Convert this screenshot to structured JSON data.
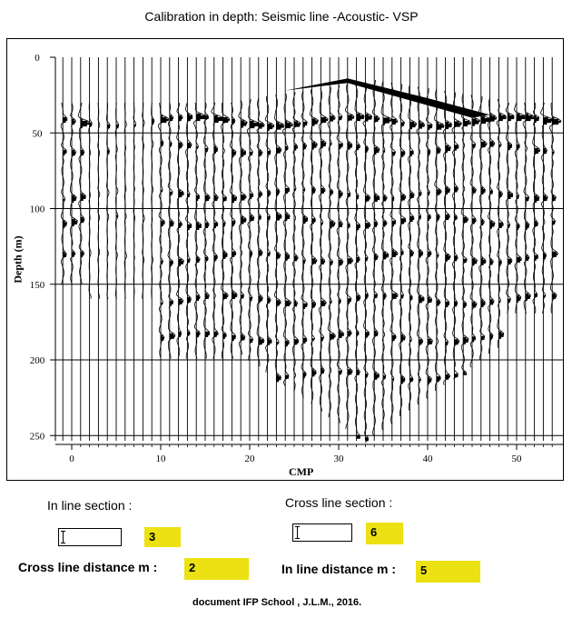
{
  "title": "Calibration in depth:  Seismic line -Acoustic- VSP",
  "plot": {
    "y_label": "Depth (m)",
    "x_label": "CMP",
    "y_ticks": [
      "0",
      "50",
      "100",
      "150",
      "200",
      "250"
    ],
    "x_ticks": [
      "0",
      "10",
      "20",
      "30",
      "40",
      "50"
    ],
    "y_range": [
      0,
      250
    ],
    "x_range": [
      0,
      50
    ],
    "reflector_depths": [
      42,
      60,
      90,
      108,
      132,
      160,
      185,
      210,
      250
    ]
  },
  "controls": {
    "inline_section": {
      "label": "In line section :",
      "value": "3"
    },
    "crossline_section": {
      "label": "Cross line section :",
      "value": "6"
    },
    "crossline_distance": {
      "label": "Cross line distance m :",
      "value": "2"
    },
    "inline_distance": {
      "label": "In line distance m :",
      "value": "5"
    }
  },
  "credit": "document IFP School , J.L.M., 2016."
}
